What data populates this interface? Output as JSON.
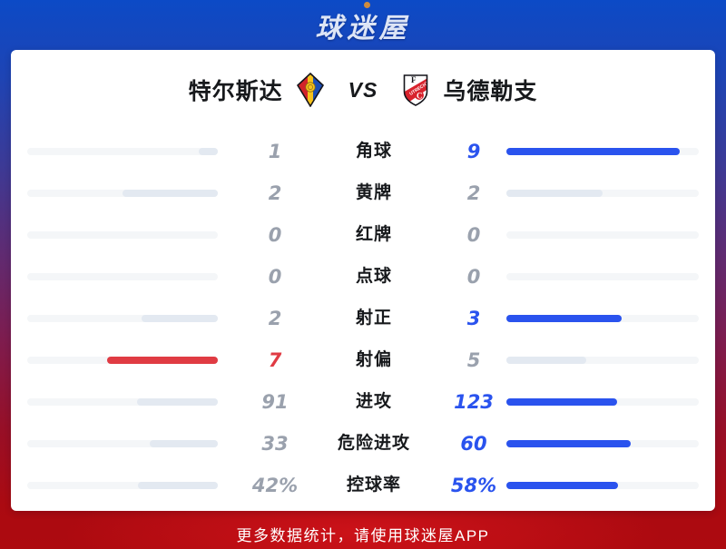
{
  "brand": {
    "logo_text": "球迷屋",
    "footer_text": "更多数据统计，请使用球迷屋APP"
  },
  "match": {
    "home_team": "特尔斯达",
    "away_team": "乌德勒支",
    "vs_label": "VS"
  },
  "stats_rows": [
    {
      "label": "角球",
      "left_text": "1",
      "right_text": "9",
      "left_value": 1,
      "right_value": 9,
      "left_color": "gray",
      "right_color": "blue"
    },
    {
      "label": "黄牌",
      "left_text": "2",
      "right_text": "2",
      "left_value": 2,
      "right_value": 2,
      "left_color": "gray",
      "right_color": "gray"
    },
    {
      "label": "红牌",
      "left_text": "0",
      "right_text": "0",
      "left_value": 0,
      "right_value": 0,
      "left_color": "gray",
      "right_color": "gray"
    },
    {
      "label": "点球",
      "left_text": "0",
      "right_text": "0",
      "left_value": 0,
      "right_value": 0,
      "left_color": "gray",
      "right_color": "gray"
    },
    {
      "label": "射正",
      "left_text": "2",
      "right_text": "3",
      "left_value": 2,
      "right_value": 3,
      "left_color": "gray",
      "right_color": "blue"
    },
    {
      "label": "射偏",
      "left_text": "7",
      "right_text": "5",
      "left_value": 7,
      "right_value": 5,
      "left_color": "red",
      "right_color": "gray"
    },
    {
      "label": "进攻",
      "left_text": "91",
      "right_text": "123",
      "left_value": 91,
      "right_value": 123,
      "left_color": "gray",
      "right_color": "blue"
    },
    {
      "label": "危险进攻",
      "left_text": "33",
      "right_text": "60",
      "left_value": 33,
      "right_value": 60,
      "left_color": "gray",
      "right_color": "blue"
    },
    {
      "label": "控球率",
      "left_text": "42%",
      "right_text": "58%",
      "left_value": 42,
      "right_value": 58,
      "left_color": "gray",
      "right_color": "blue"
    }
  ],
  "chart_data": {
    "type": "bar",
    "title": "特尔斯达 VS 乌德勒支",
    "categories": [
      "角球",
      "黄牌",
      "红牌",
      "点球",
      "射正",
      "射偏",
      "进攻",
      "危险进攻",
      "控球率"
    ],
    "series": [
      {
        "name": "特尔斯达",
        "values": [
          1,
          2,
          0,
          0,
          2,
          7,
          91,
          33,
          42
        ]
      },
      {
        "name": "乌德勒支",
        "values": [
          9,
          2,
          0,
          0,
          3,
          5,
          123,
          60,
          58
        ]
      }
    ],
    "layout": "mirrored horizontal bars, fill proportional to value/(left+right), last row in percent"
  },
  "colors": {
    "accent_blue": "#2a53ee",
    "accent_red": "#e03b43",
    "neutral_fill": "#e3e9f1",
    "bar_track": "#f4f6f8",
    "muted_text": "#9aa1ad",
    "label_text": "#17191c",
    "bg_top_blue": "#0c4ac6",
    "bg_bottom_red": "#ad0a0f",
    "logo_dot": "#cf8b3e"
  }
}
